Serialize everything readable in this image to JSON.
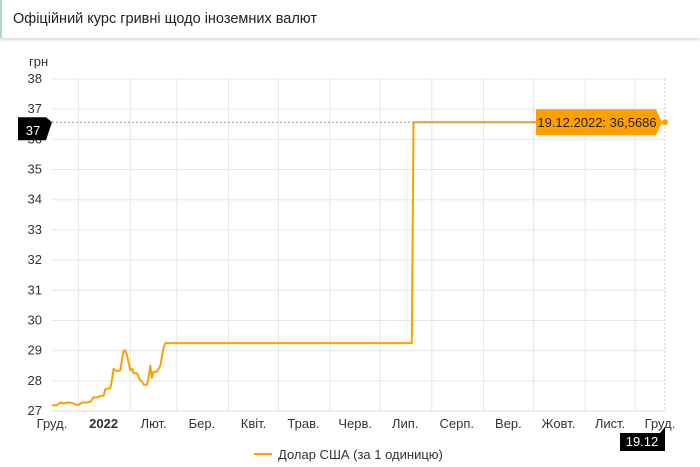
{
  "header": {
    "title": "Офіційний курс гривні щодо іноземних валют"
  },
  "chart_data": {
    "type": "line",
    "title": "",
    "ylabel": "грн",
    "ylim": [
      27,
      38
    ],
    "yticks": [
      27,
      28,
      29,
      30,
      31,
      32,
      33,
      34,
      35,
      36,
      37,
      38
    ],
    "xlim": [
      "2021-12-16",
      "2022-12-19"
    ],
    "xtick_labels": [
      {
        "date": "2021-12-16",
        "label": "Груд.",
        "bold": false
      },
      {
        "date": "2022-01-16",
        "label": "2022",
        "bold": true
      },
      {
        "date": "2022-02-15",
        "label": "Лют.",
        "bold": false
      },
      {
        "date": "2022-03-16",
        "label": "Бер.",
        "bold": false
      },
      {
        "date": "2022-04-16",
        "label": "Квіт.",
        "bold": false
      },
      {
        "date": "2022-05-16",
        "label": "Трав.",
        "bold": false
      },
      {
        "date": "2022-06-16",
        "label": "Черв.",
        "bold": false
      },
      {
        "date": "2022-07-16",
        "label": "Лип.",
        "bold": false
      },
      {
        "date": "2022-08-16",
        "label": "Серп.",
        "bold": false
      },
      {
        "date": "2022-09-16",
        "label": "Вер.",
        "bold": false
      },
      {
        "date": "2022-10-16",
        "label": "Жовт.",
        "bold": false
      },
      {
        "date": "2022-11-16",
        "label": "Лист.",
        "bold": false
      },
      {
        "date": "2022-12-16",
        "label": "Груд.",
        "bold": false
      }
    ],
    "grid": true,
    "legend_position": "bottom",
    "series": [
      {
        "name": "Долар США (за 1 одиницю)",
        "color": "#ffa000",
        "points": [
          [
            "2021-12-16",
            27.18
          ],
          [
            "2021-12-19",
            27.2
          ],
          [
            "2021-12-21",
            27.28
          ],
          [
            "2021-12-23",
            27.25
          ],
          [
            "2021-12-25",
            27.28
          ],
          [
            "2021-12-28",
            27.27
          ],
          [
            "2021-12-30",
            27.22
          ],
          [
            "2022-01-01",
            27.2
          ],
          [
            "2022-01-03",
            27.28
          ],
          [
            "2022-01-06",
            27.28
          ],
          [
            "2022-01-08",
            27.3
          ],
          [
            "2022-01-10",
            27.45
          ],
          [
            "2022-01-12",
            27.45
          ],
          [
            "2022-01-14",
            27.5
          ],
          [
            "2022-01-16",
            27.5
          ],
          [
            "2022-01-17",
            27.72
          ],
          [
            "2022-01-19",
            27.75
          ],
          [
            "2022-01-20",
            27.75
          ],
          [
            "2022-01-21",
            28.05
          ],
          [
            "2022-01-22",
            28.4
          ],
          [
            "2022-01-23",
            28.35
          ],
          [
            "2022-01-24",
            28.32
          ],
          [
            "2022-01-26",
            28.35
          ],
          [
            "2022-01-27",
            28.7
          ],
          [
            "2022-01-28",
            29.0
          ],
          [
            "2022-01-29",
            29.0
          ],
          [
            "2022-01-30",
            28.85
          ],
          [
            "2022-02-01",
            28.35
          ],
          [
            "2022-02-02",
            28.4
          ],
          [
            "2022-02-03",
            28.25
          ],
          [
            "2022-02-05",
            28.25
          ],
          [
            "2022-02-07",
            28.0
          ],
          [
            "2022-02-08",
            27.98
          ],
          [
            "2022-02-09",
            27.87
          ],
          [
            "2022-02-11",
            27.87
          ],
          [
            "2022-02-12",
            28.1
          ],
          [
            "2022-02-13",
            28.5
          ],
          [
            "2022-02-14",
            28.1
          ],
          [
            "2022-02-15",
            28.3
          ],
          [
            "2022-02-17",
            28.3
          ],
          [
            "2022-02-19",
            28.5
          ],
          [
            "2022-02-21",
            29.1
          ],
          [
            "2022-02-22",
            29.25
          ],
          [
            "2022-07-20",
            29.25
          ],
          [
            "2022-07-21",
            36.5686
          ],
          [
            "2022-12-19",
            36.5686
          ]
        ]
      }
    ],
    "tooltip": {
      "label": "19.12.2022: 36,5686",
      "color": "#ffa000"
    },
    "crosshair_y_label": "37",
    "crosshair_x_label": "19.12"
  }
}
